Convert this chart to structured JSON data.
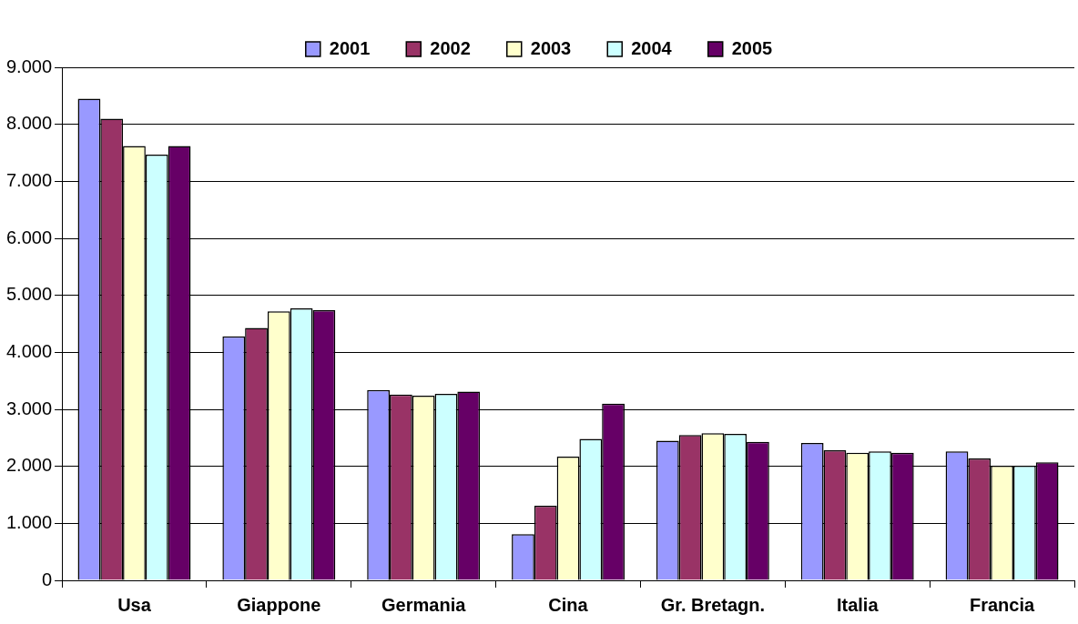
{
  "chart_data": {
    "type": "bar",
    "categories": [
      "Usa",
      "Giappone",
      "Germania",
      "Cina",
      "Gr. Bretagn.",
      "Italia",
      "Francia"
    ],
    "series": [
      {
        "name": "2001",
        "color": "#9999ff",
        "values": [
          8450,
          4280,
          3340,
          810,
          2450,
          2410,
          2260
        ]
      },
      {
        "name": "2002",
        "color": "#993366",
        "values": [
          8100,
          4430,
          3260,
          1310,
          2550,
          2280,
          2140
        ]
      },
      {
        "name": "2003",
        "color": "#ffffcc",
        "values": [
          7620,
          4720,
          3240,
          2170,
          2580,
          2240,
          2010
        ]
      },
      {
        "name": "2004",
        "color": "#ccffff",
        "values": [
          7470,
          4770,
          3270,
          2480,
          2570,
          2260,
          2010
        ]
      },
      {
        "name": "2005",
        "color": "#660066",
        "values": [
          7620,
          4740,
          3310,
          3100,
          2430,
          2240,
          2070
        ]
      }
    ],
    "ylim": [
      0,
      9000
    ],
    "yticks": [
      {
        "value": 0,
        "label": "0"
      },
      {
        "value": 1000,
        "label": "1.000"
      },
      {
        "value": 2000,
        "label": "2.000"
      },
      {
        "value": 3000,
        "label": "3.000"
      },
      {
        "value": 4000,
        "label": "4.000"
      },
      {
        "value": 5000,
        "label": "5.000"
      },
      {
        "value": 6000,
        "label": "6.000"
      },
      {
        "value": 7000,
        "label": "7.000"
      },
      {
        "value": 8000,
        "label": "8.000"
      },
      {
        "value": 9000,
        "label": "9.000"
      }
    ],
    "grid": "y",
    "legend": "top"
  }
}
